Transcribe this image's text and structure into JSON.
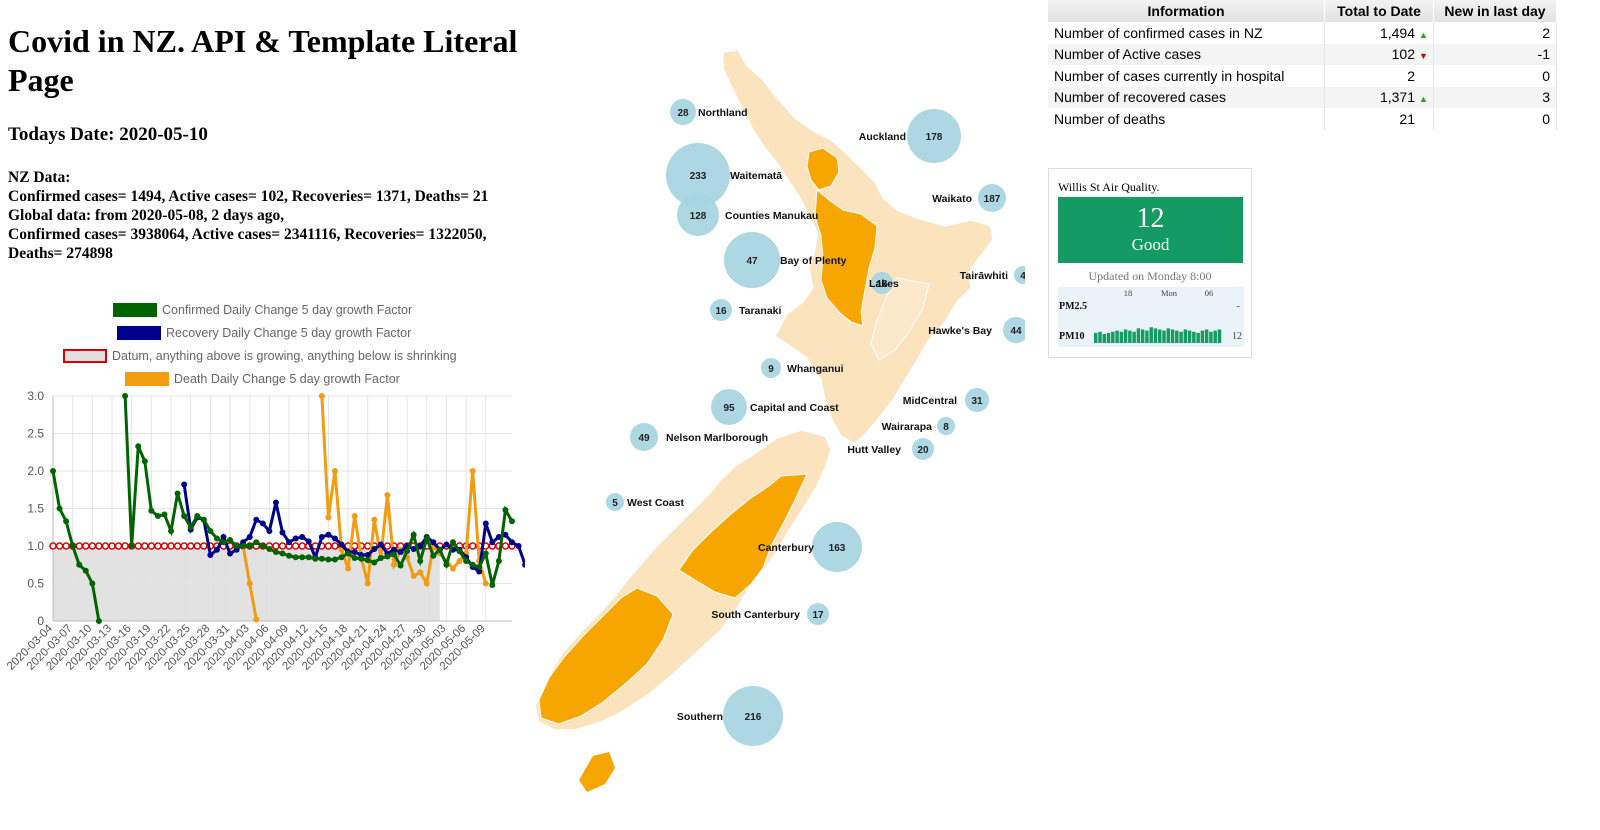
{
  "header": {
    "title": "Covid in NZ. API & Template Literal Page",
    "todays_date": "Todays Date: 2020-05-10",
    "nz_heading": "NZ Data:",
    "nz_line": "Confirmed cases= 1494, Active cases= 102, Recoveries= 1371, Deaths= 21",
    "global_heading": "Global data: from 2020-05-08, 2 days ago,",
    "global_line": "Confirmed cases= 3938064, Active cases= 2341116, Recoveries= 1322050, Deaths= 274898"
  },
  "chart_data": {
    "type": "line",
    "legend": [
      {
        "name": "Confirmed Daily Change 5 day growth Factor",
        "color": "#006400"
      },
      {
        "name": "Recovery Daily Change 5 day growth Factor",
        "color": "#00008b"
      },
      {
        "name": "Datum, anything above is growing, anything below is shrinking",
        "color": "#dd0000"
      },
      {
        "name": "Death Daily Change 5 day growth Factor",
        "color": "#f39c12"
      }
    ],
    "ylim": [
      0,
      3
    ],
    "y_ticks": [
      "0",
      "0.5",
      "1.0",
      "1.5",
      "2.0",
      "2.5",
      "3.0"
    ],
    "x_tick_labels": [
      "2020-03-04",
      "2020-03-07",
      "2020-03-10",
      "2020-03-13",
      "2020-03-16",
      "2020-03-19",
      "2020-03-22",
      "2020-03-25",
      "2020-03-28",
      "2020-03-31",
      "2020-04-03",
      "2020-04-06",
      "2020-04-09",
      "2020-04-12",
      "2020-04-15",
      "2020-04-18",
      "2020-04-21",
      "2020-04-24",
      "2020-04-27",
      "2020-04-30",
      "2020-05-03",
      "2020-05-06",
      "2020-05-09"
    ],
    "series": [
      {
        "name": "Confirmed Daily Change 5 day growth Factor",
        "color": "#006400",
        "start": 0,
        "values": [
          2.0,
          1.5,
          1.33,
          1.0,
          0.75,
          0.67,
          0.5,
          0,
          null,
          null,
          null,
          3.0,
          1.0,
          2.33,
          2.13,
          1.47,
          1.4,
          1.42,
          1.2,
          1.7,
          1.4,
          1.25,
          1.4,
          1.35,
          1.2,
          1.1,
          1.05,
          1.08,
          1.0,
          1.0,
          1.0,
          1.05,
          1.0,
          0.96,
          0.92,
          0.9,
          0.87,
          0.85,
          0.85,
          0.85,
          0.83,
          0.83,
          0.82,
          0.82,
          0.85,
          0.9,
          0.84,
          0.83,
          0.81,
          0.78,
          0.84,
          0.86,
          0.89,
          0.74,
          0.93,
          1.15,
          0.8,
          1.1,
          0.87,
          0.95,
          0.75,
          1.05,
          0.93,
          0.8,
          0.75,
          0.72,
          0.9,
          0.48,
          0.8,
          1.48,
          1.33
        ]
      },
      {
        "name": "Recovery Daily Change 5 day growth Factor",
        "color": "#00008b",
        "start": 20,
        "values": [
          1.82,
          1.22,
          1.38,
          1.35,
          0.88,
          0.95,
          1.12,
          0.9,
          0.95,
          1.05,
          1.12,
          1.35,
          1.3,
          1.2,
          1.58,
          1.18,
          1.05,
          1.1,
          1.12,
          1.06,
          0.85,
          1.12,
          1.15,
          1.1,
          1.02,
          0.92,
          0.92,
          0.88,
          0.88,
          0.96,
          1.02,
          0.9,
          0.95,
          0.92,
          1.0,
          0.96,
          1.0,
          1.12,
          1.05,
          0.95,
          1.02,
          0.95,
          0.95,
          0.85,
          0.72,
          0.66,
          1.3,
          1.05,
          1.12,
          1.15,
          1.05,
          1.0,
          0.75
        ]
      },
      {
        "name": "Datum, anything above is growing, anything below is shrinking",
        "color": "#dd0000",
        "start": 0,
        "values": [
          1,
          1,
          1,
          1,
          1,
          1,
          1,
          1,
          1,
          1,
          1,
          1,
          1,
          1,
          1,
          1,
          1,
          1,
          1,
          1,
          1,
          1,
          1,
          1,
          1,
          1,
          1,
          1,
          1,
          1,
          1,
          1,
          1,
          1,
          1,
          1,
          1,
          1,
          1,
          1,
          1,
          1,
          1,
          1,
          1,
          1,
          1,
          1,
          1,
          1,
          1,
          1,
          1,
          1,
          1,
          1,
          1,
          1,
          1,
          1,
          1,
          1,
          1,
          1,
          1,
          1,
          1,
          1,
          1,
          1,
          1
        ]
      },
      {
        "name": "Death Daily Change 5 day growth Factor",
        "color": "#f39c12",
        "start": 29,
        "values": [
          1.0,
          0.5,
          0.02,
          null,
          null,
          null,
          null,
          null,
          null,
          null,
          null,
          null,
          3.0,
          1.38,
          2.0,
          0.95,
          0.7,
          1.4,
          0.85,
          0.5,
          1.35,
          0.85,
          1.68,
          0.75,
          0.95,
          0.85,
          0.6,
          0.65,
          0.5,
          1.0,
          0.9,
          0.8,
          0.7,
          0.8,
          0.9,
          2.0,
          0.8,
          0.5
        ]
      }
    ]
  },
  "map": {
    "regions": [
      {
        "name": "Northland",
        "count": "28"
      },
      {
        "name": "Auckland",
        "count": "178"
      },
      {
        "name": "Waitematā",
        "count": "233"
      },
      {
        "name": "Counties Manukau",
        "count": "128"
      },
      {
        "name": "Bay of Plenty",
        "count": "47"
      },
      {
        "name": "Waikato",
        "count": "187"
      },
      {
        "name": "Lakes",
        "count": "16"
      },
      {
        "name": "Tairāwhiti",
        "count": "4"
      },
      {
        "name": "Taranaki",
        "count": "16"
      },
      {
        "name": "Hawke's Bay",
        "count": "44"
      },
      {
        "name": "Whanganui",
        "count": "9"
      },
      {
        "name": "MidCentral",
        "count": "31"
      },
      {
        "name": "Capital and Coast",
        "count": "95"
      },
      {
        "name": "Wairarapa",
        "count": "8"
      },
      {
        "name": "Nelson Marlborough",
        "count": "49"
      },
      {
        "name": "Hutt Valley",
        "count": "20"
      },
      {
        "name": "West Coast",
        "count": "5"
      },
      {
        "name": "Canterbury",
        "count": "163"
      },
      {
        "name": "South Canterbury",
        "count": "17"
      },
      {
        "name": "Southern",
        "count": "216"
      }
    ]
  },
  "table": {
    "headers": [
      "Information",
      "Total to Date",
      "New in last day"
    ],
    "rows": [
      {
        "label": "Number of confirmed cases in NZ",
        "total": "1,494",
        "trend": "up",
        "new": "2"
      },
      {
        "label": "Number of Active cases",
        "total": "102",
        "trend": "down",
        "new": "-1"
      },
      {
        "label": "Number of cases currently in hospital",
        "total": "2",
        "trend": "",
        "new": "0"
      },
      {
        "label": "Number of recovered cases",
        "total": "1,371",
        "trend": "up",
        "new": "3"
      },
      {
        "label": "Number of deaths",
        "total": "21",
        "trend": "",
        "new": "0"
      }
    ]
  },
  "air_quality": {
    "title": "Willis St Air Quality.",
    "value": "12",
    "status": "Good",
    "status_color": "#139b63",
    "updated": "Updated on Monday 8:00",
    "pm25_label": "PM2.5",
    "pm25_value": "-",
    "pm10_label": "PM10",
    "pm10_value": "12",
    "time_labels": [
      "18",
      "Mon",
      "06"
    ],
    "pm10_bars": [
      9,
      10,
      8,
      9,
      10,
      11,
      10,
      12,
      11,
      10,
      13,
      12,
      11,
      14,
      13,
      12,
      11,
      13,
      12,
      11,
      10,
      12,
      11,
      10,
      9,
      11,
      12,
      10,
      11,
      12
    ]
  }
}
